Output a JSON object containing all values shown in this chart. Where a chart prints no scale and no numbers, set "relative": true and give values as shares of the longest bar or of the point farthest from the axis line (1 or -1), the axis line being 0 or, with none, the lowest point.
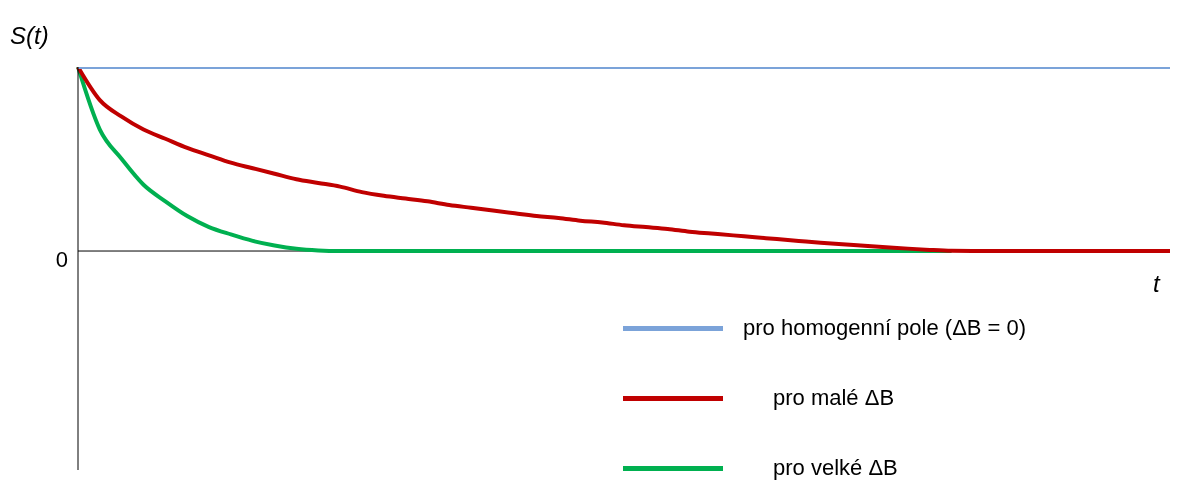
{
  "chart_data": {
    "type": "line",
    "relative": true,
    "xlabel": "t",
    "ylabel": "S(t)",
    "annotations": [
      "0"
    ],
    "legend": "bottom right",
    "categories": [
      null,
      null,
      null,
      null,
      null,
      null,
      null,
      null,
      null,
      null,
      null,
      null,
      null,
      null,
      null,
      null,
      null,
      null,
      null,
      null,
      null,
      null,
      null,
      null,
      null,
      null,
      null,
      null,
      null,
      null,
      null,
      null,
      null,
      null,
      null,
      null,
      null,
      null,
      null,
      null,
      null,
      null,
      null,
      null,
      null,
      null,
      null,
      null,
      null,
      null,
      null
    ],
    "series": [
      {
        "name": "pro homogenní pole (ΔB = 0)",
        "color": "#7ba3d9",
        "values": [
          1,
          1,
          1,
          1,
          1,
          1,
          1,
          1,
          1,
          1,
          1,
          1,
          1,
          1,
          1,
          1,
          1,
          1,
          1,
          1,
          1,
          1,
          1,
          1,
          1,
          1,
          1,
          1,
          1,
          1,
          1,
          1,
          1,
          1,
          1,
          1,
          1,
          1,
          1,
          1,
          1,
          1,
          1,
          1,
          1,
          1,
          1,
          1,
          1,
          1,
          1
        ]
      },
      {
        "name": "pro malé ΔB",
        "color": "#c00000",
        "values": [
          1,
          0.82,
          0.73,
          0.66,
          0.61,
          0.56,
          0.52,
          0.48,
          0.45,
          0.42,
          0.39,
          0.37,
          0.35,
          0.32,
          0.3,
          0.285,
          0.27,
          0.25,
          0.235,
          0.22,
          0.205,
          0.19,
          0.18,
          0.165,
          0.155,
          0.14,
          0.13,
          0.12,
          0.105,
          0.095,
          0.085,
          0.075,
          0.065,
          0.055,
          0.045,
          0.037,
          0.029,
          0.021,
          0.013,
          0.006,
          0.001,
          0,
          0,
          0,
          0,
          0,
          0,
          0,
          0,
          0,
          0
        ]
      },
      {
        "name": "pro velké ΔB",
        "color": "#00b050",
        "values": [
          1,
          0.66,
          0.5,
          0.36,
          0.27,
          0.19,
          0.13,
          0.09,
          0.055,
          0.03,
          0.012,
          0.003,
          0,
          0,
          0,
          0,
          0,
          0,
          0,
          0,
          0,
          0,
          0,
          0,
          0,
          0,
          0,
          0,
          0,
          0,
          0,
          0,
          0,
          0,
          0,
          0,
          0,
          0,
          0,
          0,
          0,
          null,
          null,
          null,
          null,
          null,
          null,
          null,
          null,
          null,
          null
        ]
      }
    ]
  }
}
